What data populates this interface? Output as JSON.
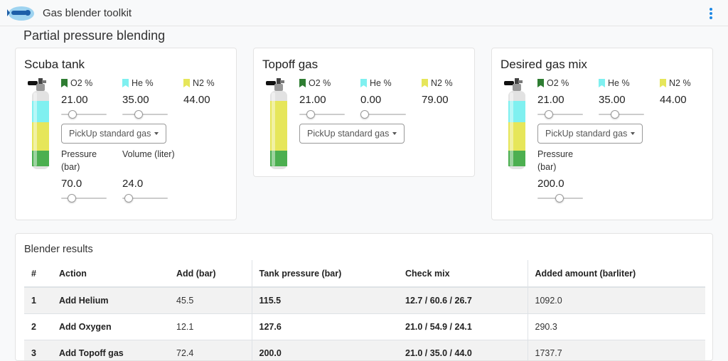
{
  "app": {
    "title": "Gas blender toolkit"
  },
  "page_title": "Partial pressure blending",
  "colors": {
    "o2": "#2e7d32",
    "he": "#7ff0f0",
    "n2": "#e6e65a",
    "accent": "#1e88e5"
  },
  "pickup_label": "PickUp standard gas",
  "labels": {
    "o2": "O2 %",
    "he": "He %",
    "n2": "N2 %",
    "pressure": "Pressure",
    "pressure_unit": "(bar)",
    "volume": "Volume (liter)"
  },
  "scuba": {
    "title": "Scuba tank",
    "o2": "21.00",
    "he": "35.00",
    "n2": "44.00",
    "pressure": "70.0",
    "volume": "24.0"
  },
  "topoff": {
    "title": "Topoff gas",
    "o2": "21.00",
    "he": "0.00",
    "n2": "79.00"
  },
  "desired": {
    "title": "Desired gas mix",
    "o2": "21.00",
    "he": "35.00",
    "n2": "44.00",
    "pressure": "200.0"
  },
  "results": {
    "title": "Blender results",
    "columns": [
      "#",
      "Action",
      "Add (bar)",
      "Tank pressure (bar)",
      "Check mix",
      "Added amount (barliter)"
    ],
    "rows": [
      [
        "1",
        "Add Helium",
        "45.5",
        "115.5",
        "12.7 / 60.6 / 26.7",
        "1092.0"
      ],
      [
        "2",
        "Add Oxygen",
        "12.1",
        "127.6",
        "21.0 / 54.9 / 24.1",
        "290.3"
      ],
      [
        "3",
        "Add Topoff gas",
        "72.4",
        "200.0",
        "21.0 / 35.0 / 44.0",
        "1737.7"
      ]
    ]
  }
}
